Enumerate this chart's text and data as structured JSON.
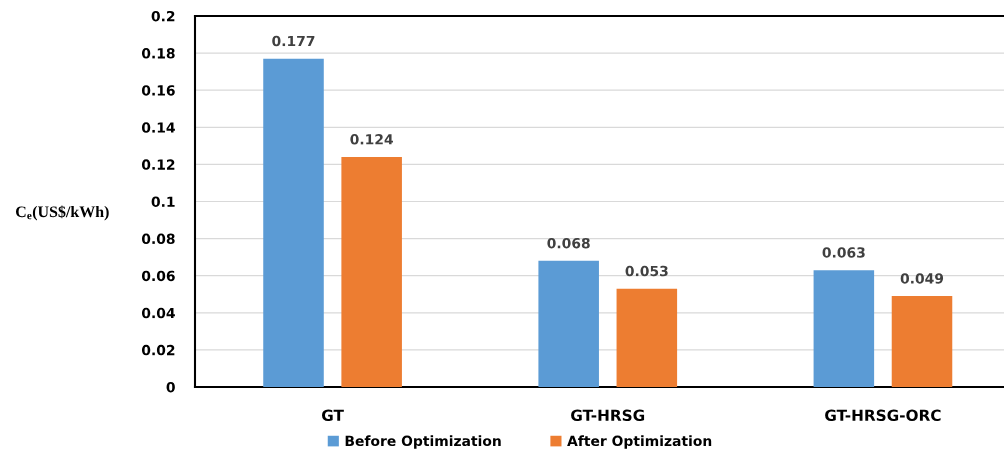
{
  "chart_data": {
    "type": "bar",
    "categories": [
      "GT",
      "GT-HRSG",
      "GT-HRSG-ORC"
    ],
    "series": [
      {
        "name": "Before Optimization",
        "color": "#5b9bd5",
        "values": [
          0.177,
          0.068,
          0.063
        ]
      },
      {
        "name": "After Optimization",
        "color": "#ed7d31",
        "values": [
          0.124,
          0.053,
          0.049
        ]
      }
    ],
    "ylabel": "C$_{e}$(US$/kWh)",
    "ylim": [
      0,
      0.2
    ],
    "yticks": [
      0,
      0.02,
      0.04,
      0.06,
      0.08,
      0.1,
      0.12,
      0.14,
      0.16,
      0.18,
      0.2
    ],
    "grid": "y",
    "legend": "bottom",
    "data_labels": true
  }
}
